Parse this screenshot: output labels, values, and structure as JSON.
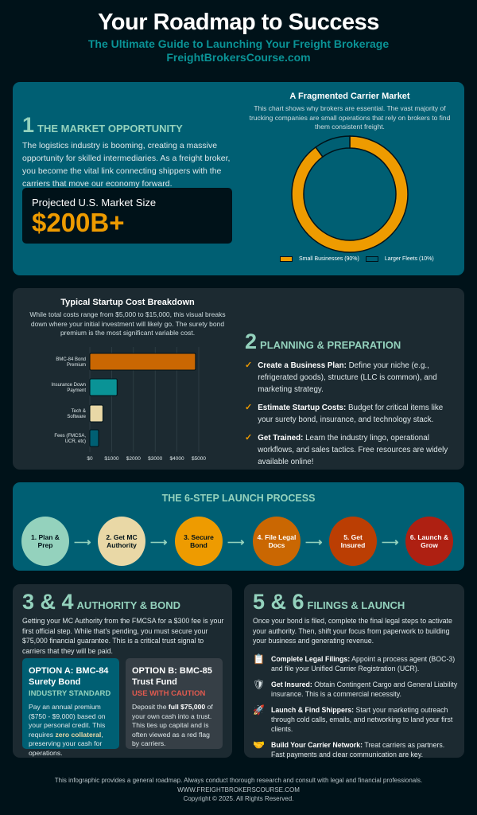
{
  "header": {
    "title": "Your Roadmap to Success",
    "subtitle": "The Ultimate Guide to Launching Your Freight Brokerage",
    "site": "FreightBrokersCourse.com"
  },
  "market": {
    "num": "1",
    "heading": "THE MARKET OPPORTUNITY",
    "text": "The logistics industry is booming, creating a massive opportunity for skilled intermediaries. As a freight broker, you become the vital link connecting shippers with the carriers that move our economy forward.",
    "stat_label": "Projected U.S. Market Size",
    "stat_value": "$200B+"
  },
  "planning": {
    "num": "2",
    "heading": "PLANNING & PREPARATION",
    "items": [
      {
        "bold": "Create a Business Plan:",
        "text": " Define your niche (e.g., refrigerated goods), structure (LLC is common), and marketing strategy."
      },
      {
        "bold": "Estimate Startup Costs:",
        "text": " Budget for critical items like your surety bond, insurance, and technology stack."
      },
      {
        "bold": "Get Trained:",
        "text": " Learn the industry lingo, operational workflows, and sales tactics. Free resources are widely available online!"
      }
    ]
  },
  "process": {
    "title": "THE 6-STEP LAUNCH PROCESS",
    "steps": [
      {
        "label": "1. Plan & Prep",
        "color": "#94d2bd",
        "text": "#001219"
      },
      {
        "label": "2. Get MC Authority",
        "color": "#e9d8a6",
        "text": "#001219"
      },
      {
        "label": "3. Secure Bond",
        "color": "#ee9b00",
        "text": "#001219"
      },
      {
        "label": "4. File Legal Docs",
        "color": "#ca6702",
        "text": "#ffffff"
      },
      {
        "label": "5. Get Insured",
        "color": "#bb3e03",
        "text": "#ffffff"
      },
      {
        "label": "6. Launch & Grow",
        "color": "#ae2012",
        "text": "#ffffff"
      }
    ]
  },
  "authority": {
    "num": "3 & 4",
    "heading": "AUTHORITY & BOND",
    "text": "Getting your MC Authority from the FMCSA for a $300 fee is your first official step. While that's pending, you must secure your $75,000 financial guarantee. This is a critical trust signal to carriers that they will be paid.",
    "option_a": {
      "title": "OPTION A: BMC-84 Surety Bond",
      "tag": "INDUSTRY STANDARD",
      "p1": "Pay an annual premium ($750 - $9,000) based on your personal credit. This requires ",
      "hl": "zero collateral",
      "p2": ", preserving your cash for operations."
    },
    "option_b": {
      "title": "OPTION B: BMC-85 Trust Fund",
      "tag": "USE WITH CAUTION",
      "p1": "Deposit the ",
      "hl": "full $75,000",
      "p2": " of your own cash into a trust. This ties up capital and is often viewed as a red flag by carriers."
    }
  },
  "filings": {
    "num": "5 & 6",
    "heading": "FILINGS & LAUNCH",
    "text": "Once your bond is filed, complete the final legal steps to activate your authority. Then, shift your focus from paperwork to building your business and generating revenue.",
    "items": [
      {
        "icon": "📋",
        "icon_name": "clipboard-icon",
        "bold": "Complete Legal Filings:",
        "text": " Appoint a process agent (BOC-3) and file your Unified Carrier Registration (UCR)."
      },
      {
        "icon": "🛡",
        "icon_name": "shield-icon",
        "bold": "Get Insured:",
        "text": " Obtain Contingent Cargo and General Liability insurance. This is a commercial necessity."
      },
      {
        "icon": "🚀",
        "icon_name": "rocket-icon",
        "bold": "Launch & Find Shippers:",
        "text": " Start your marketing outreach through cold calls, emails, and networking to land your first clients."
      },
      {
        "icon": "🤝",
        "icon_name": "handshake-icon",
        "bold": "Build Your Carrier Network:",
        "text": " Treat carriers as partners. Fast payments and clear communication are key."
      }
    ]
  },
  "footer": {
    "disclaimer": "This infographic provides a general roadmap. Always conduct thorough research and consult with legal and financial professionals.",
    "site": "WWW.FREIGHTBROKERSCOURSE.COM",
    "copyright": "Copyright © 2025. All Rights Reserved."
  },
  "chart_data": [
    {
      "type": "pie",
      "title": "A Fragmented Carrier Market",
      "subtitle": "This chart shows why brokers are essential. The vast majority of trucking companies are small operations that rely on brokers to find them consistent freight.",
      "donut": true,
      "categories": [
        "Small Businesses (90%)",
        "Larger Fleets (10%)"
      ],
      "values": [
        90,
        10
      ],
      "colors": [
        "#ee9b00",
        "#005f73"
      ],
      "legend": "bottom"
    },
    {
      "type": "bar",
      "orientation": "horizontal",
      "title": "Typical Startup Cost Breakdown",
      "subtitle": "While total costs range from $5,000 to $15,000, this visual breaks down where your initial investment will likely go. The surety bond premium is the most significant variable cost.",
      "categories": [
        "BMC-84 Bond Premium",
        "Insurance Down Payment",
        "Tech & Software",
        "Fees (FMCSA, UCR, etc)"
      ],
      "values": [
        4850,
        1250,
        600,
        400
      ],
      "colors": [
        "#ca6702",
        "#0a9396",
        "#e9d8a6",
        "#005f73"
      ],
      "xlim": [
        0,
        5000
      ],
      "xticks": [
        "$0",
        "$1000",
        "$2000",
        "$3000",
        "$4000",
        "$5000"
      ],
      "grid": true
    }
  ]
}
